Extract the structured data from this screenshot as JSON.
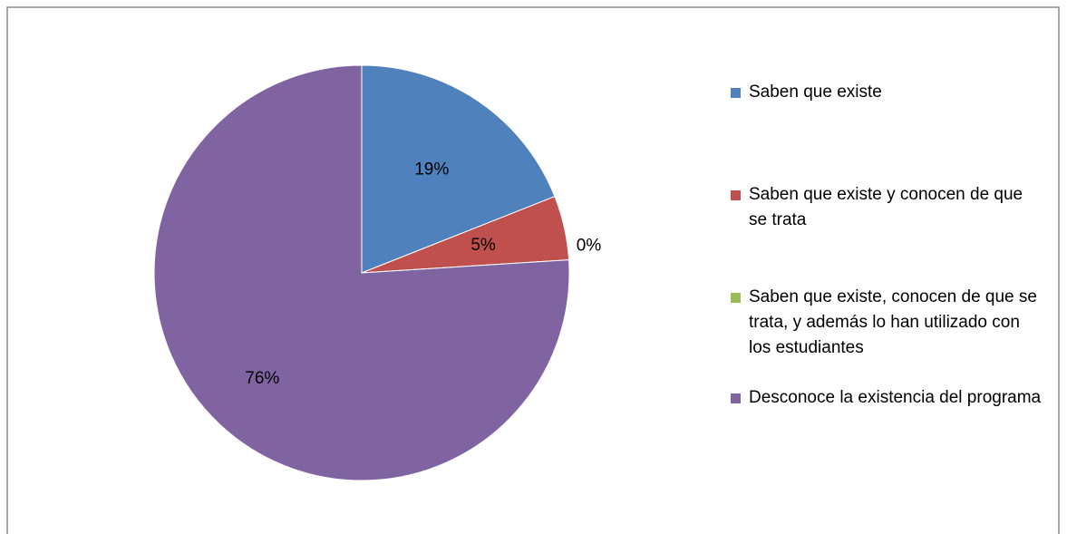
{
  "chart_data": {
    "type": "pie",
    "categories": [
      "Saben que existe",
      "Saben que existe y conocen de que se trata",
      "Saben que existe, conocen de que se trata, y además lo han utilizado con los estudiantes",
      "Desconoce la existencia del programa"
    ],
    "values": [
      19,
      5,
      0,
      76
    ],
    "value_labels": [
      "19%",
      "5%",
      "0%",
      "76%"
    ],
    "colors": [
      "#4f81bd",
      "#c0504d",
      "#9bbb59",
      "#8064a2"
    ],
    "legend": "right"
  }
}
